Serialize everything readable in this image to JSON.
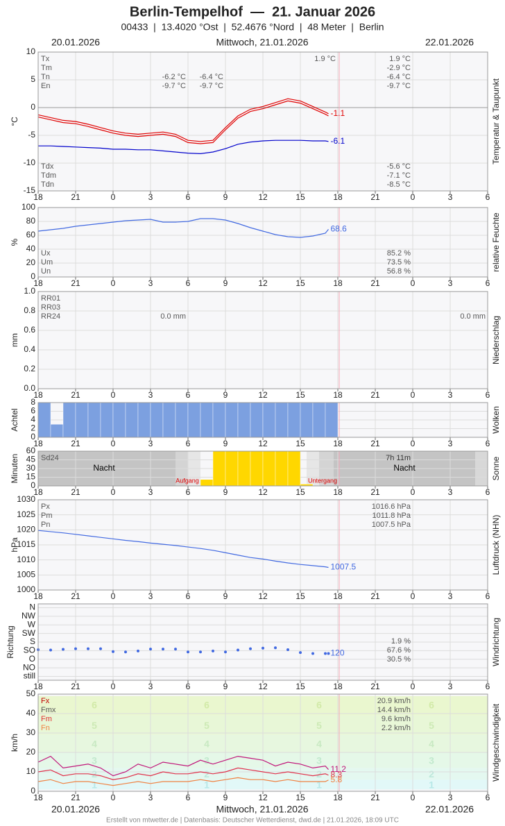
{
  "header": {
    "title": "Berlin-Tempelhof  —  21. Januar 2026",
    "subtitle": "00433  |  13.4020 °Ost  |  52.4676 °Nord  |  48 Meter  |  Berlin",
    "date_left": "20.01.2026",
    "date_center": "Mittwoch, 21.01.2026",
    "date_right": "22.01.2026"
  },
  "footer": "Erstellt von mtwetter.de | Datenbasis: Deutscher Wetterdienst, dwd.de | 21.01.2026, 18:09 UTC",
  "x_axis": {
    "xlim": [
      18,
      54
    ],
    "xticks": [
      18,
      21,
      {
        "value": 24,
        "label": "0"
      },
      {
        "value": 27,
        "label": "3"
      },
      {
        "value": 30,
        "label": "6"
      },
      {
        "value": 33,
        "label": "9"
      },
      {
        "value": 36,
        "label": "12"
      },
      {
        "value": 39,
        "label": "15"
      },
      {
        "value": 42,
        "label": "18"
      },
      {
        "value": 45,
        "label": "21"
      },
      {
        "value": 48,
        "label": "0"
      },
      {
        "value": 51,
        "label": "3"
      },
      {
        "value": 54,
        "label": "6"
      }
    ]
  },
  "chart_data": [
    {
      "type": "line",
      "y_label": "°C",
      "side_label": "Temperatur & Taupunkt",
      "ylim": [
        -15,
        10
      ],
      "yticks": [
        -15,
        -10,
        -5,
        0,
        5,
        10
      ],
      "grid": true,
      "x": [
        18,
        19,
        20,
        21,
        22,
        23,
        24,
        25,
        26,
        27,
        28,
        29,
        30,
        31,
        32,
        33,
        34,
        35,
        36,
        37,
        38,
        39,
        40,
        41,
        41.25
      ],
      "series": [
        {
          "color": "#e00000",
          "end_label": true,
          "values": [
            -1.3,
            -1.8,
            -2.3,
            -2.5,
            -3.0,
            -3.6,
            -4.2,
            -4.6,
            -4.8,
            -4.6,
            -4.4,
            -4.8,
            -5.9,
            -6.1,
            -5.9,
            -3.6,
            -1.5,
            -0.3,
            0.2,
            0.9,
            1.6,
            1.2,
            0.2,
            -0.8,
            -1.1
          ]
        },
        {
          "color": "#e00000",
          "end_label": false,
          "values": [
            -1.7,
            -2.2,
            -2.7,
            -2.9,
            -3.4,
            -4.0,
            -4.6,
            -5.0,
            -5.2,
            -5.0,
            -4.8,
            -5.2,
            -6.3,
            -6.5,
            -6.3,
            -4.0,
            -1.9,
            -0.7,
            -0.2,
            0.5,
            1.2,
            0.8,
            -0.2,
            -1.2,
            -1.5
          ]
        },
        {
          "color": "#0000cc",
          "end_label": true,
          "values": [
            -6.9,
            -6.9,
            -7.0,
            -7.1,
            -7.2,
            -7.3,
            -7.5,
            -7.5,
            -7.6,
            -7.6,
            -7.8,
            -8.0,
            -8.2,
            -8.3,
            -8.0,
            -7.4,
            -6.6,
            -6.2,
            -6.0,
            -5.9,
            -5.9,
            -5.9,
            -6.0,
            -6.0,
            -6.1
          ]
        }
      ],
      "stats": [
        {
          "names": [
            "Tx",
            "Tm",
            "Tn",
            "En"
          ],
          "values": [
            "1.9 °C",
            "-2.9 °C",
            "-6.4 °C",
            "-9.7 °C"
          ]
        },
        {
          "names": [
            "Tdx",
            "Tdm",
            "Tdn"
          ],
          "values": [
            "-5.6 °C",
            "-7.1 °C",
            "-8.5 °C"
          ]
        }
      ],
      "annotations": [
        "1.9 °C",
        "-6.2 °C",
        "-9.7 °C",
        "-6.4 °C",
        "-9.7 °C"
      ]
    },
    {
      "type": "line",
      "y_label": "%",
      "side_label": "relative Feuchte",
      "ylim": [
        0,
        100
      ],
      "yticks": [
        0,
        20,
        40,
        60,
        80,
        100
      ],
      "grid": true,
      "x": [
        18,
        19,
        20,
        21,
        22,
        23,
        24,
        25,
        26,
        27,
        28,
        29,
        30,
        31,
        32,
        33,
        34,
        35,
        36,
        37,
        38,
        39,
        40,
        41,
        41.25
      ],
      "series": [
        {
          "color": "#4169e1",
          "end_label": true,
          "values": [
            66,
            68,
            70,
            73,
            75,
            77,
            79,
            81,
            82,
            83,
            79,
            79,
            80,
            84,
            84,
            82,
            77,
            71,
            66,
            61,
            58,
            57,
            59,
            63,
            68.6
          ]
        }
      ],
      "stats": [
        {
          "names": [
            "Ux",
            "Um",
            "Un"
          ],
          "values": [
            "85.2 %",
            "73.5 %",
            "56.8 %"
          ]
        }
      ]
    },
    {
      "type": "bar",
      "y_label": "mm",
      "side_label": "Niederschlag",
      "ylim": [
        0,
        1
      ],
      "yticks": [
        {
          "value": 0,
          "label": "0.0"
        },
        {
          "value": 0.2,
          "label": "0.2"
        },
        {
          "value": 0.4,
          "label": "0.4"
        },
        {
          "value": 0.6,
          "label": "0.6"
        },
        {
          "value": 0.8,
          "label": "0.8"
        },
        {
          "value": 1,
          "label": "1.0"
        }
      ],
      "grid": true,
      "stats": [
        {
          "names": [
            "RR01",
            "RR03",
            "RR24"
          ],
          "values": []
        }
      ],
      "annotations": [
        "0.0 mm",
        "0.0 mm"
      ]
    },
    {
      "type": "bar",
      "y_label": "Achtel",
      "side_label": "Wolken",
      "ylim": [
        0,
        8
      ],
      "yticks": [
        0,
        2,
        4,
        6,
        8
      ],
      "grid": true,
      "color": "#7ca0e0",
      "x": [
        18,
        19,
        20,
        21,
        22,
        23,
        24,
        25,
        26,
        27,
        28,
        29,
        30,
        31,
        32,
        33,
        34,
        35,
        36,
        37,
        38,
        39,
        40,
        41
      ],
      "values": [
        8,
        3,
        8,
        8,
        8,
        8,
        8,
        8,
        8,
        8,
        8,
        8,
        8,
        8,
        8,
        8,
        8,
        8,
        8,
        8,
        8,
        8,
        8,
        8
      ]
    },
    {
      "type": "bar",
      "y_label": "Minuten",
      "side_label": "Sonne",
      "ylim": [
        0,
        60
      ],
      "yticks": [
        0,
        15,
        30,
        45,
        60
      ],
      "grid": true,
      "color": "#ffd700",
      "x": [
        31,
        32,
        33,
        34,
        35,
        36,
        37,
        38,
        39
      ],
      "values": [
        11,
        60,
        60,
        60,
        60,
        60,
        60,
        60,
        3
      ],
      "stats": [
        {
          "names": [
            "Sd24"
          ],
          "values": []
        }
      ],
      "annotations": [
        "Nacht",
        "7h 11m",
        "Nacht",
        "Aufgang",
        "Untergang"
      ]
    },
    {
      "type": "line",
      "y_label": "hPa",
      "side_label": "Luftdruck (NHN)",
      "ylim": [
        1000,
        1030
      ],
      "yticks": [
        1000,
        1005,
        1010,
        1015,
        1020,
        1025,
        1030
      ],
      "grid": true,
      "x": [
        18,
        19,
        20,
        21,
        22,
        23,
        24,
        25,
        26,
        27,
        28,
        29,
        30,
        31,
        32,
        33,
        34,
        35,
        36,
        37,
        38,
        39,
        40,
        41,
        41.25
      ],
      "series": [
        {
          "color": "#4169e1",
          "end_label": true,
          "values": [
            1019.8,
            1019.4,
            1019.0,
            1018.5,
            1018.0,
            1017.5,
            1017.0,
            1016.5,
            1016.1,
            1015.6,
            1015.2,
            1014.8,
            1014.3,
            1013.8,
            1013.2,
            1012.4,
            1011.6,
            1010.8,
            1010.3,
            1009.6,
            1009.0,
            1008.5,
            1008.1,
            1007.7,
            1007.5
          ]
        }
      ],
      "stats": [
        {
          "names": [
            "Px",
            "Pm",
            "Pn"
          ],
          "values": [
            "1016.6 hPa",
            "1011.8 hPa",
            "1007.5 hPa"
          ]
        }
      ]
    },
    {
      "type": "scatter",
      "y_label": "Richtung",
      "side_label": "Windrichtung",
      "ylim": [
        -20,
        380
      ],
      "yticks": [
        {
          "value": 0,
          "label": "still"
        },
        {
          "value": 45,
          "label": "NO"
        },
        {
          "value": 90,
          "label": "O"
        },
        {
          "value": 135,
          "label": "SO"
        },
        {
          "value": 180,
          "label": "S"
        },
        {
          "value": 225,
          "label": "SW"
        },
        {
          "value": 270,
          "label": "W"
        },
        {
          "value": 315,
          "label": "NW"
        },
        {
          "value": 360,
          "label": "N"
        }
      ],
      "grid": true,
      "x": [
        18,
        19,
        20,
        21,
        22,
        23,
        24,
        25,
        26,
        27,
        28,
        29,
        30,
        31,
        32,
        33,
        34,
        35,
        36,
        37,
        38,
        39,
        40,
        41,
        41.25
      ],
      "series": [
        {
          "color": "#4169e1",
          "end_label": true,
          "values": [
            140,
            138,
            142,
            145,
            145,
            145,
            130,
            128,
            133,
            143,
            143,
            143,
            128,
            128,
            133,
            128,
            138,
            145,
            148,
            150,
            140,
            125,
            120,
            120,
            120
          ]
        }
      ],
      "stats": [
        {
          "names": [],
          "values": [
            "1.9 %",
            "67.6 %",
            "30.5 %"
          ]
        }
      ]
    },
    {
      "type": "line",
      "y_label": "km/h",
      "side_label": "Windgeschwindigkeit",
      "ylim": [
        0,
        50
      ],
      "yticks": [
        0,
        10,
        20,
        30,
        40,
        50
      ],
      "grid": true,
      "x": [
        18,
        19,
        20,
        21,
        22,
        23,
        24,
        25,
        26,
        27,
        28,
        29,
        30,
        31,
        32,
        33,
        34,
        35,
        36,
        37,
        38,
        39,
        40,
        41,
        41.25
      ],
      "series": [
        {
          "color": "#c0147a",
          "end_label": true,
          "values": [
            15,
            18,
            12,
            13,
            14,
            12,
            8,
            10,
            14,
            12,
            15,
            14,
            13,
            16,
            14,
            16,
            18,
            17,
            16,
            13,
            15,
            14,
            12,
            13,
            11.2
          ]
        },
        {
          "color": "#e0304a",
          "end_label": true,
          "values": [
            10,
            11,
            8,
            9,
            9,
            8,
            6,
            7,
            9,
            8,
            10,
            9,
            9,
            10,
            9,
            10,
            12,
            11,
            10,
            9,
            10,
            9,
            8,
            9,
            8.3
          ]
        },
        {
          "color": "#f08040",
          "end_label": true,
          "values": [
            5,
            6,
            4,
            5,
            5,
            4,
            3,
            4,
            5,
            4,
            5,
            5,
            5,
            6,
            5,
            6,
            7,
            6,
            6,
            5,
            6,
            5,
            5,
            5,
            5.8
          ]
        }
      ],
      "stats": [
        {
          "names": [
            "Fx",
            "Fmx",
            "Fm",
            "Fn"
          ],
          "colors": [
            "#c00000",
            "#555555",
            "#e03030",
            "#f08040"
          ],
          "values": [
            "20.9 km/h",
            "14.4 km/h",
            "9.6 km/h",
            "2.2 km/h"
          ]
        }
      ],
      "beaufort": {
        "levels": [
          1,
          2,
          3,
          4,
          5,
          6
        ],
        "lower": [
          1,
          6,
          12,
          20,
          29,
          39
        ],
        "upper": [
          5,
          11,
          19,
          28,
          38,
          49
        ]
      }
    }
  ]
}
